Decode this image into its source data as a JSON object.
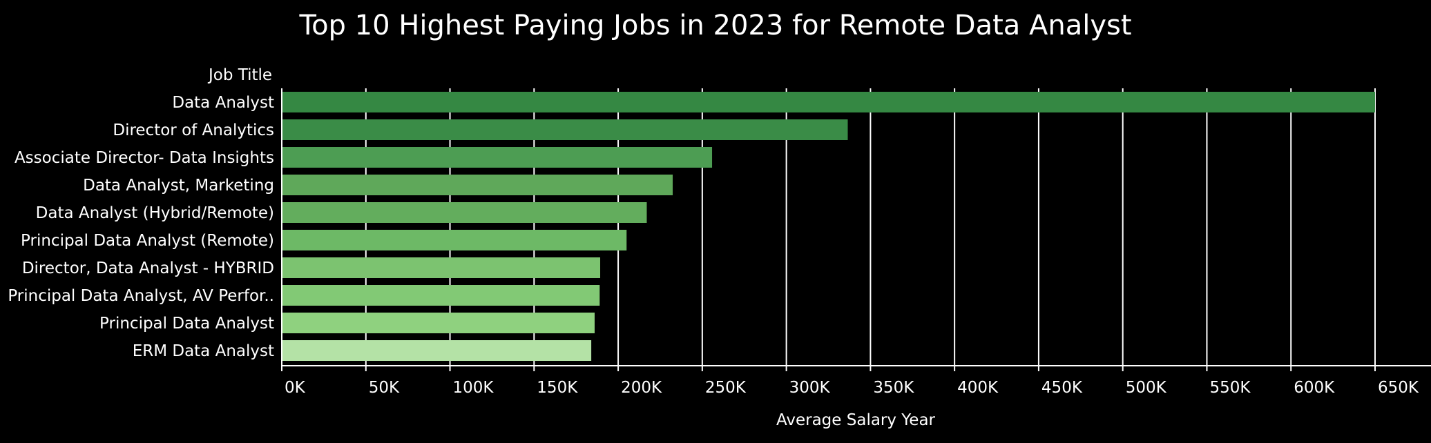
{
  "chart_data": {
    "type": "bar",
    "orientation": "horizontal",
    "title": "Top 10 Highest Paying Jobs in 2023 for Remote Data Analyst",
    "ylabel": "Job Title",
    "xlabel": "Average Salary Year",
    "categories": [
      "Data Analyst",
      "Director of Analytics",
      "Associate Director- Data Insights",
      "Data Analyst, Marketing",
      "Data Analyst (Hybrid/Remote)",
      "Principal Data Analyst (Remote)",
      "Director, Data Analyst - HYBRID",
      "Principal Data Analyst, AV Perfor..",
      "Principal Data Analyst",
      "ERM Data Analyst"
    ],
    "values": [
      650000,
      336500,
      255830,
      232423,
      217000,
      205000,
      189309,
      189000,
      186000,
      184000
    ],
    "xlim": [
      0,
      650000
    ],
    "x_ticks": [
      0,
      50000,
      100000,
      150000,
      200000,
      250000,
      300000,
      350000,
      400000,
      450000,
      500000,
      550000,
      600000,
      650000
    ],
    "x_tick_labels": [
      "0K",
      "50K",
      "100K",
      "150K",
      "200K",
      "250K",
      "300K",
      "350K",
      "400K",
      "450K",
      "500K",
      "550K",
      "600K",
      "650K"
    ],
    "grid": "vertical",
    "bar_colors": [
      "#358843",
      "#3a8c47",
      "#4d9d53",
      "#5fa85a",
      "#63ad5d",
      "#6db966",
      "#7cc370",
      "#82c975",
      "#8fd17f",
      "#b4e2a6"
    ],
    "background": "#000000",
    "text_color": "#ffffff"
  }
}
